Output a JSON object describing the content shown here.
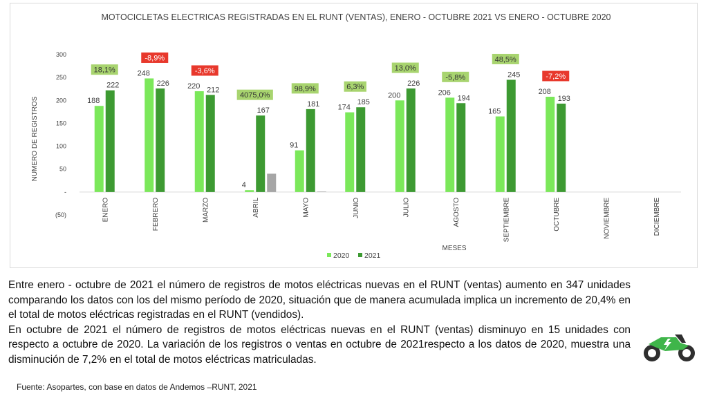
{
  "chart_data": {
    "type": "bar",
    "title": "MOTOCICLETAS ELECTRICAS REGISTRADAS EN EL RUNT (VENTAS), ENERO - OCTUBRE 2021 VS ENERO - OCTUBRE 2020",
    "xlabel": "MESES",
    "ylabel": "NUMERO DE REGISTROS",
    "ylim": [
      -50,
      300
    ],
    "yticks": [
      {
        "value": 300,
        "label": "300"
      },
      {
        "value": 250,
        "label": "250"
      },
      {
        "value": 200,
        "label": "200"
      },
      {
        "value": 150,
        "label": "150"
      },
      {
        "value": 100,
        "label": "100"
      },
      {
        "value": 50,
        "label": "50"
      },
      {
        "value": 0,
        "label": "-"
      },
      {
        "value": -50,
        "label": "(50)"
      }
    ],
    "grid": false,
    "legend_position": "bottom",
    "categories": [
      "ENERO",
      "FEBRERO",
      "MARZO",
      "ABRIL",
      "MAYO",
      "JUNIO",
      "JULIO",
      "AGOSTO",
      "SEPTIEMBRE",
      "OCTUBRE",
      "NOVIEMBRE",
      "DICIEMBRE"
    ],
    "series": [
      {
        "name": "2020",
        "color": "#7be85a",
        "values": [
          188,
          248,
          220,
          4,
          91,
          174,
          200,
          206,
          165,
          208,
          null,
          null
        ]
      },
      {
        "name": "2021",
        "color": "#3d9a32",
        "values": [
          222,
          226,
          212,
          167,
          181,
          185,
          226,
          194,
          245,
          193,
          null,
          null
        ]
      }
    ],
    "extra_bars": [
      {
        "category_index": 3,
        "value": 40,
        "color": "#a6a6a6"
      },
      {
        "category_index": 4,
        "value": 1,
        "color": "#a6a6a6"
      }
    ],
    "variations": [
      {
        "category_index": 0,
        "label": "18,1%",
        "color": "#a8d46f"
      },
      {
        "category_index": 1,
        "label": "-8,9%",
        "color": "#e8382c"
      },
      {
        "category_index": 2,
        "label": "-3,6%",
        "color": "#e8382c"
      },
      {
        "category_index": 3,
        "label": "4075,0%",
        "color": "#a8d46f"
      },
      {
        "category_index": 4,
        "label": "98,9%",
        "color": "#a8d46f"
      },
      {
        "category_index": 5,
        "label": "6,3%",
        "color": "#a8d46f"
      },
      {
        "category_index": 6,
        "label": "13,0%",
        "color": "#a8d46f"
      },
      {
        "category_index": 7,
        "label": "-5,8%",
        "color": "#a8d46f"
      },
      {
        "category_index": 8,
        "label": "48,5%",
        "color": "#a8d46f"
      },
      {
        "category_index": 9,
        "label": "-7,2%",
        "color": "#e8382c"
      }
    ]
  },
  "paragraph": {
    "p1": "Entre enero - octubre de 2021 el número de registros de motos eléctricas nuevas en el RUNT (ventas) aumento en 347 unidades comparando los datos con los del mismo período de 2020, situación que de manera acumulada implica un incremento de 20,4% en el total de motos eléctricas registradas en el RUNT (vendidos).",
    "p2": "En octubre de 2021 el número de registros de motos eléctricas nuevas en el RUNT (ventas) disminuyo en 15 unidades con respecto a octubre de 2020. La variación de los registros o ventas en octubre de 2021respecto a los datos de 2020, muestra una disminución de 7,2% en el total de motos eléctricas matriculadas."
  },
  "source": "Fuente: Asopartes, con base en datos de Andemos –RUNT, 2021",
  "icons": {
    "logo": "electric-motorcycle-icon",
    "accent": "#3fb54a"
  }
}
